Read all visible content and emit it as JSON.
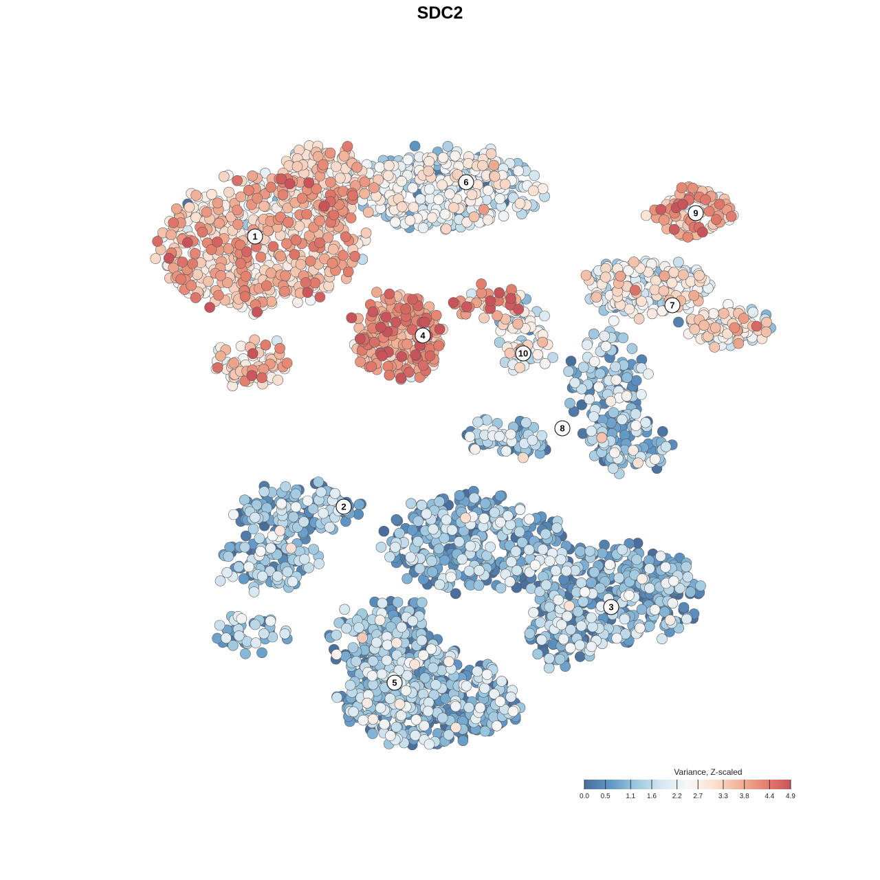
{
  "chart_data": {
    "type": "scatter",
    "title": "SDC2",
    "xlabel": "",
    "ylabel": "",
    "grid": false,
    "legend": {
      "title": "Variance, Z-scaled",
      "placement": "bottom-right",
      "ticks": [
        "0.0",
        "0.5",
        "1.1",
        "1.6",
        "2.2",
        "2.7",
        "3.3",
        "3.8",
        "4.4",
        "4.9"
      ],
      "range": [
        0.0,
        4.9
      ],
      "colors": [
        "#4a6f9c",
        "#5f97c6",
        "#9dc7df",
        "#d6e7f1",
        "#f7f7f7",
        "#fbe1d3",
        "#f1b49a",
        "#e5826f",
        "#c9535a"
      ]
    },
    "point_color_scale": "blue-white-red diverging",
    "clusters": [
      {
        "label": "1",
        "mean_value": 3.2
      },
      {
        "label": "2",
        "mean_value": 1.0
      },
      {
        "label": "3",
        "mean_value": 0.8
      },
      {
        "label": "4",
        "mean_value": 3.8
      },
      {
        "label": "5",
        "mean_value": 0.9
      },
      {
        "label": "6",
        "mean_value": 1.9
      },
      {
        "label": "7",
        "mean_value": 2.4
      },
      {
        "label": "8",
        "mean_value": 1.1
      },
      {
        "label": "9",
        "mean_value": 3.5
      },
      {
        "label": "10",
        "mean_value": 2.2
      }
    ]
  }
}
